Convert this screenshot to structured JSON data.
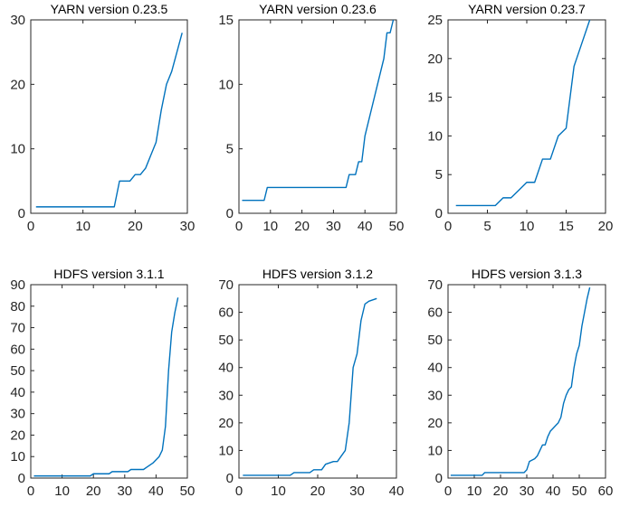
{
  "figure": {
    "background": "#ffffff",
    "line_color": "#0072BD"
  },
  "chart_data": [
    {
      "type": "line",
      "title": "YARN version 0.23.5",
      "xlim": [
        0,
        30
      ],
      "ylim": [
        0,
        30
      ],
      "xticks": [
        0,
        10,
        20,
        30
      ],
      "yticks": [
        0,
        10,
        20,
        30
      ],
      "series": [
        {
          "x": [
            1,
            16,
            17,
            18,
            19,
            20,
            21,
            22,
            23,
            24,
            25,
            26,
            27,
            28,
            29
          ],
          "y": [
            1,
            1,
            5,
            5,
            5,
            6,
            6,
            7,
            9,
            11,
            16,
            20,
            22,
            25,
            28
          ]
        }
      ]
    },
    {
      "type": "line",
      "title": "YARN version 0.23.6",
      "xlim": [
        0,
        50
      ],
      "ylim": [
        0,
        15
      ],
      "xticks": [
        0,
        10,
        20,
        30,
        40,
        50
      ],
      "yticks": [
        0,
        5,
        10,
        15
      ],
      "series": [
        {
          "x": [
            1,
            8,
            9,
            34,
            35,
            37,
            38,
            39,
            40,
            42,
            44,
            46,
            47,
            48,
            49
          ],
          "y": [
            1,
            1,
            2,
            2,
            3,
            3,
            4,
            4,
            6,
            8,
            10,
            12,
            14,
            14,
            15
          ]
        }
      ]
    },
    {
      "type": "line",
      "title": "YARN version 0.23.7",
      "xlim": [
        0,
        20
      ],
      "ylim": [
        0,
        25
      ],
      "xticks": [
        0,
        5,
        10,
        15,
        20
      ],
      "yticks": [
        0,
        5,
        10,
        15,
        20,
        25
      ],
      "series": [
        {
          "x": [
            1,
            6,
            7,
            8,
            9,
            10,
            11,
            12,
            13,
            14,
            15,
            16,
            17,
            18
          ],
          "y": [
            1,
            1,
            2,
            2,
            3,
            4,
            4,
            7,
            7,
            10,
            11,
            19,
            22,
            25
          ]
        }
      ]
    },
    {
      "type": "line",
      "title": "HDFS version 3.1.1",
      "xlim": [
        0,
        50
      ],
      "ylim": [
        0,
        90
      ],
      "xticks": [
        0,
        10,
        20,
        30,
        40,
        50
      ],
      "yticks": [
        0,
        10,
        20,
        30,
        40,
        50,
        60,
        70,
        80,
        90
      ],
      "series": [
        {
          "x": [
            1,
            19,
            20,
            25,
            26,
            31,
            32,
            36,
            37,
            39,
            41,
            42,
            43,
            44,
            45,
            46,
            47
          ],
          "y": [
            1,
            1,
            2,
            2,
            3,
            3,
            4,
            4,
            5,
            7,
            10,
            13,
            24,
            50,
            68,
            77,
            84
          ]
        }
      ]
    },
    {
      "type": "line",
      "title": "HDFS version 3.1.2",
      "xlim": [
        0,
        40
      ],
      "ylim": [
        0,
        70
      ],
      "xticks": [
        0,
        10,
        20,
        30,
        40
      ],
      "yticks": [
        0,
        10,
        20,
        30,
        40,
        50,
        60,
        70
      ],
      "series": [
        {
          "x": [
            1,
            13,
            14,
            18,
            19,
            21,
            22,
            24,
            25,
            26,
            27,
            28,
            29,
            30,
            31,
            32,
            33,
            35
          ],
          "y": [
            1,
            1,
            2,
            2,
            3,
            3,
            5,
            6,
            6,
            8,
            10,
            20,
            40,
            45,
            57,
            63,
            64,
            65
          ]
        }
      ]
    },
    {
      "type": "line",
      "title": "HDFS version 3.1.3",
      "xlim": [
        0,
        60
      ],
      "ylim": [
        0,
        70
      ],
      "xticks": [
        0,
        10,
        20,
        30,
        40,
        50,
        60
      ],
      "yticks": [
        0,
        10,
        20,
        30,
        40,
        50,
        60,
        70
      ],
      "series": [
        {
          "x": [
            1,
            13,
            14,
            29,
            30,
            31,
            33,
            34,
            35,
            36,
            37,
            38,
            39,
            40,
            41,
            42,
            43,
            44,
            45,
            46,
            47,
            48,
            49,
            50,
            51,
            52,
            53,
            54
          ],
          "y": [
            1,
            1,
            2,
            2,
            3,
            6,
            7,
            8,
            10,
            12,
            12,
            15,
            17,
            18,
            19,
            20,
            22,
            27,
            30,
            32,
            33,
            40,
            45,
            48,
            55,
            60,
            65,
            69
          ]
        }
      ]
    }
  ]
}
